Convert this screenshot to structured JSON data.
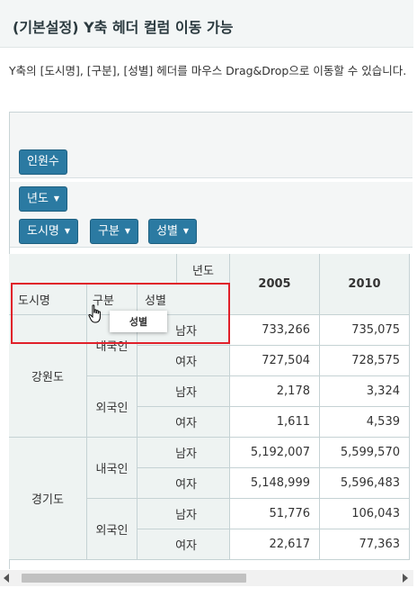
{
  "page": {
    "title": "(기본설정) Y축 헤더 컬럼 이동 가능",
    "description": "Y축의 [도시명], [구분], [성별] 헤더를 마우스 Drag&Drop으로 이동할 수 있습니다."
  },
  "filter_zone": {
    "value_chip": "인원수",
    "column_chip": "년도",
    "row_chips": [
      "도시명",
      "구분",
      "성별"
    ]
  },
  "table": {
    "column_field_label": "년도",
    "row_headers": [
      "도시명",
      "구분",
      "성별"
    ],
    "years": [
      "2005",
      "2010"
    ],
    "rows": [
      {
        "city": "강원도",
        "type": "내국인",
        "sex": "남자",
        "v2005": "733,266",
        "v2010": "735,075"
      },
      {
        "city": "강원도",
        "type": "내국인",
        "sex": "여자",
        "v2005": "727,504",
        "v2010": "728,575"
      },
      {
        "city": "강원도",
        "type": "외국인",
        "sex": "남자",
        "v2005": "2,178",
        "v2010": "3,324"
      },
      {
        "city": "강원도",
        "type": "외국인",
        "sex": "여자",
        "v2005": "1,611",
        "v2010": "4,539"
      },
      {
        "city": "경기도",
        "type": "내국인",
        "sex": "남자",
        "v2005": "5,192,007",
        "v2010": "5,599,570"
      },
      {
        "city": "경기도",
        "type": "내국인",
        "sex": "여자",
        "v2005": "5,148,999",
        "v2010": "5,596,483"
      },
      {
        "city": "경기도",
        "type": "외국인",
        "sex": "남자",
        "v2005": "51,776",
        "v2010": "106,043"
      },
      {
        "city": "경기도",
        "type": "외국인",
        "sex": "여자",
        "v2005": "22,617",
        "v2010": "77,363"
      }
    ],
    "cities": [
      "강원도",
      "경기도"
    ],
    "types": [
      "내국인",
      "외국인",
      "내국인",
      "외국인"
    ]
  },
  "drag_ghost_label": "성별",
  "colors": {
    "chip": "#2b7aa2",
    "highlight": "#e0202a",
    "header_bg": "#eef3f2"
  }
}
